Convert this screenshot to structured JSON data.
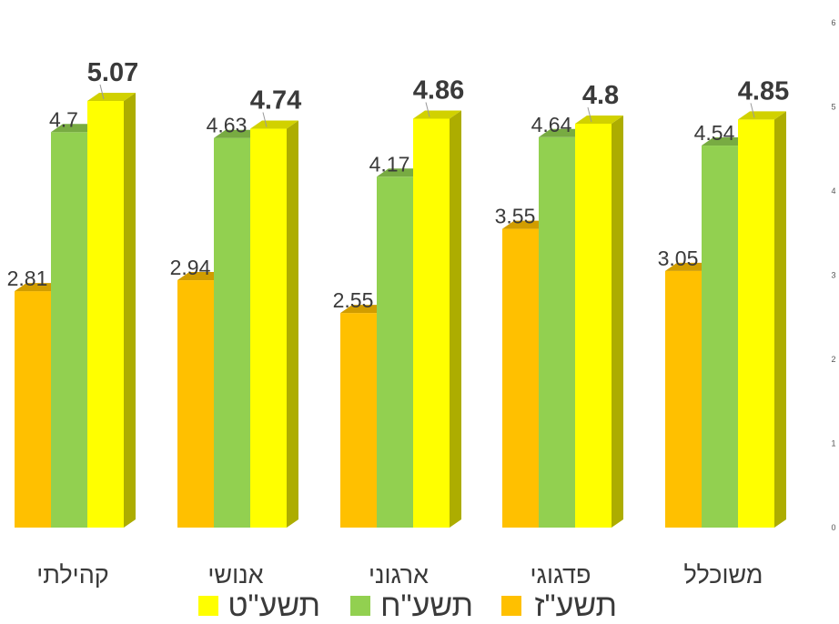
{
  "chart_data": {
    "type": "bar",
    "categories": [
      "קהילתי",
      "אנושי",
      "ארגוני",
      "פדגוגי",
      "משוכלל"
    ],
    "series": [
      {
        "name": "תשע\"ז",
        "values": [
          2.81,
          2.94,
          2.55,
          3.55,
          3.05
        ],
        "color": "#FFC000",
        "bold_labels": false
      },
      {
        "name": "תשע\"ח",
        "values": [
          4.7,
          4.63,
          4.17,
          4.64,
          4.54
        ],
        "color": "#92D050",
        "bold_labels": false
      },
      {
        "name": "תשע\"ט",
        "values": [
          5.07,
          4.74,
          4.86,
          4.8,
          4.85
        ],
        "color": "#FFFF00",
        "bold_labels": true
      }
    ],
    "value_labels": [
      [
        "2.81",
        "2.94",
        "2.55",
        "3.55",
        "3.05"
      ],
      [
        "4.7",
        "4.63",
        "4.17",
        "4.64",
        "4.54"
      ],
      [
        "5.07",
        "4.74",
        "4.86",
        "4.8",
        "4.85"
      ]
    ],
    "ylim": [
      0,
      6
    ],
    "y_ticks": [
      "0",
      "1",
      "2",
      "3",
      "4",
      "5",
      "6"
    ],
    "legend_position": "bottom",
    "grid": false,
    "style": "3d-column"
  }
}
